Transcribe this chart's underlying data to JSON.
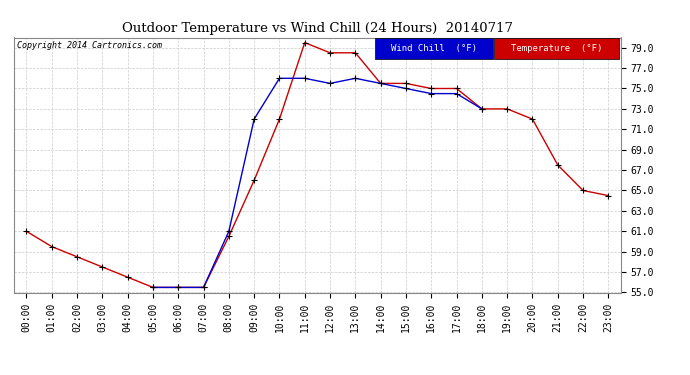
{
  "title": "Outdoor Temperature vs Wind Chill (24 Hours)  20140717",
  "copyright": "Copyright 2014 Cartronics.com",
  "background_color": "#ffffff",
  "grid_color": "#cccccc",
  "ylim": [
    55.0,
    80.0
  ],
  "yticks": [
    55.0,
    57.0,
    59.0,
    61.0,
    63.0,
    65.0,
    67.0,
    69.0,
    71.0,
    73.0,
    75.0,
    77.0,
    79.0
  ],
  "hours": [
    "00:00",
    "01:00",
    "02:00",
    "03:00",
    "04:00",
    "05:00",
    "06:00",
    "07:00",
    "08:00",
    "09:00",
    "10:00",
    "11:00",
    "12:00",
    "13:00",
    "14:00",
    "15:00",
    "16:00",
    "17:00",
    "18:00",
    "19:00",
    "20:00",
    "21:00",
    "22:00",
    "23:00"
  ],
  "temperature": [
    61.0,
    59.5,
    58.5,
    57.5,
    56.5,
    55.5,
    55.5,
    55.5,
    60.5,
    66.0,
    72.0,
    79.5,
    78.5,
    78.5,
    75.5,
    75.5,
    75.0,
    75.0,
    73.0,
    73.0,
    72.0,
    67.5,
    65.0,
    64.5
  ],
  "wind_chill": [
    null,
    null,
    null,
    null,
    null,
    55.5,
    55.5,
    55.5,
    61.0,
    72.0,
    76.0,
    76.0,
    75.5,
    76.0,
    75.5,
    75.0,
    74.5,
    74.5,
    73.0,
    null,
    null,
    null,
    null,
    null
  ],
  "temp_color": "#cc0000",
  "wind_color": "#0000cc",
  "marker": "+",
  "marker_color": "#000000",
  "legend_wind_bg": "#0000cc",
  "legend_temp_bg": "#cc0000",
  "legend_wind_text": "Wind Chill  (°F)",
  "legend_temp_text": "Temperature  (°F)"
}
